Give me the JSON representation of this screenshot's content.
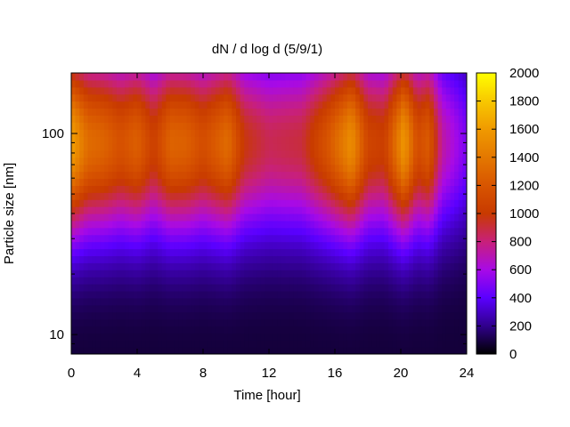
{
  "chart_data": {
    "type": "heatmap",
    "title": "dN / d log d (5/9/1)",
    "xlabel": "Time [hour]",
    "ylabel": "Particle size [nm]",
    "xlim": [
      0,
      24
    ],
    "ylim_nm": [
      8,
      200
    ],
    "y_scale": "log",
    "x_ticks": [
      "0",
      "4",
      "8",
      "12",
      "16",
      "20",
      "24"
    ],
    "x_tick_values": [
      0,
      4,
      8,
      12,
      16,
      20,
      24
    ],
    "y_ticks": [
      "10",
      "100"
    ],
    "y_tick_values": [
      10,
      100
    ],
    "colorbar": {
      "ticks": [
        "0",
        "200",
        "400",
        "600",
        "800",
        "1000",
        "1200",
        "1400",
        "1600",
        "1800",
        "2000"
      ],
      "range": [
        0,
        2000
      ],
      "colors": [
        "#000000",
        "#30008c",
        "#5a00ff",
        "#a80ae6",
        "#c8207a",
        "#c83a00",
        "#d85500",
        "#e47800",
        "#f09a00",
        "#f8c800",
        "#ffff00"
      ]
    },
    "peak_size_nm": 90,
    "time_profile": [
      {
        "t": 0.0,
        "peak": 1550
      },
      {
        "t": 0.5,
        "peak": 1400
      },
      {
        "t": 1.0,
        "peak": 1250
      },
      {
        "t": 2.0,
        "peak": 1200
      },
      {
        "t": 3.0,
        "peak": 1080
      },
      {
        "t": 4.0,
        "peak": 1180
      },
      {
        "t": 5.0,
        "peak": 950
      },
      {
        "t": 6.0,
        "peak": 1200
      },
      {
        "t": 7.0,
        "peak": 1180
      },
      {
        "t": 8.0,
        "peak": 1050
      },
      {
        "t": 9.5,
        "peak": 1250
      },
      {
        "t": 10.5,
        "peak": 900
      },
      {
        "t": 12.0,
        "peak": 780
      },
      {
        "t": 14.0,
        "peak": 820
      },
      {
        "t": 15.5,
        "peak": 1100
      },
      {
        "t": 17.0,
        "peak": 1450
      },
      {
        "t": 18.0,
        "peak": 1000
      },
      {
        "t": 19.0,
        "peak": 950
      },
      {
        "t": 20.2,
        "peak": 1500
      },
      {
        "t": 21.0,
        "peak": 1050
      },
      {
        "t": 21.7,
        "peak": 1150
      },
      {
        "t": 22.5,
        "peak": 650
      },
      {
        "t": 24.0,
        "peak": 400
      }
    ]
  }
}
